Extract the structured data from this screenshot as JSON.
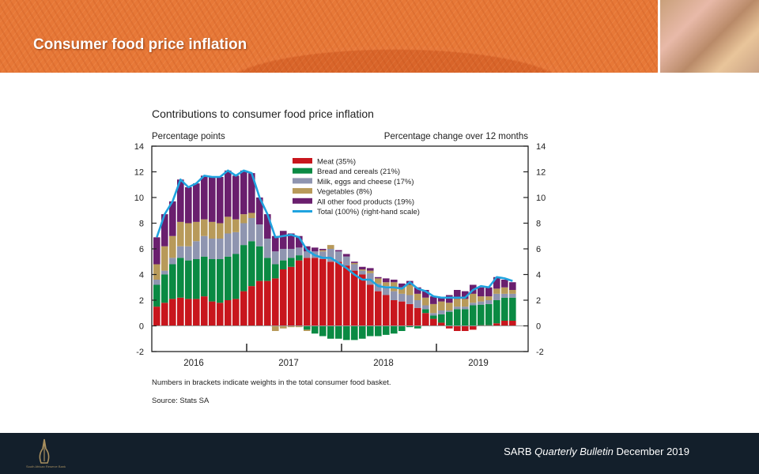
{
  "header": {
    "title": "Consumer food price inflation"
  },
  "footer": {
    "prefix": "SARB",
    "quarterly": "Quarterly",
    "bulletin": "Bulletin",
    "suffix": "December 2019",
    "logo_text": "South African Reserve Bank"
  },
  "colors": {
    "meat": "#c8161d",
    "bread": "#0a8a43",
    "milk": "#8f95b0",
    "veg": "#b89a5a",
    "other": "#6a1f6e",
    "total": "#1fa3df",
    "banner": "#e67838",
    "footer": "#131f2b"
  },
  "chart_data": {
    "type": "bar",
    "stacked": true,
    "title": "Contributions to consumer food price inflation",
    "ylabel_left": "Percentage points",
    "ylabel_right": "Percentage change over 12 months",
    "ylim": [
      -2,
      14
    ],
    "yticks": [
      -2,
      0,
      2,
      4,
      6,
      8,
      10,
      12,
      14
    ],
    "x_start": "2016-01",
    "x_labels": [
      "2016",
      "2017",
      "2018",
      "2019"
    ],
    "legend_position": "top-center",
    "series": [
      {
        "key": "meat",
        "name": "Meat (35%)",
        "values": [
          1.5,
          1.8,
          2.1,
          2.2,
          2.1,
          2.1,
          2.3,
          1.9,
          1.8,
          2.0,
          2.1,
          2.7,
          3.1,
          3.5,
          3.5,
          3.7,
          4.4,
          4.6,
          5.1,
          5.3,
          5.3,
          5.2,
          5.0,
          5.0,
          4.7,
          4.3,
          4.0,
          3.2,
          2.7,
          2.4,
          2.0,
          1.9,
          1.7,
          1.4,
          1.0,
          0.55,
          0.25,
          -0.2,
          -0.4,
          -0.4,
          -0.3,
          0.05,
          0.05,
          0.2,
          0.4,
          0.4
        ]
      },
      {
        "key": "bread",
        "name": "Bread and cereals (21%)",
        "values": [
          1.7,
          2.2,
          2.7,
          3.1,
          3.0,
          3.1,
          3.1,
          3.3,
          3.4,
          3.4,
          3.5,
          3.6,
          3.5,
          2.7,
          1.8,
          1.1,
          0.7,
          0.7,
          0.4,
          -0.3,
          -0.6,
          -0.8,
          -1.0,
          -1.0,
          -1.1,
          -1.1,
          -1.0,
          -0.8,
          -0.8,
          -0.7,
          -0.6,
          -0.4,
          -0.1,
          -0.2,
          0.3,
          0.25,
          0.65,
          1.1,
          1.3,
          1.3,
          1.6,
          1.6,
          1.65,
          1.8,
          1.8,
          1.8
        ]
      },
      {
        "key": "milk",
        "name": "Milk, eggs and cheese (17%)",
        "values": [
          0.4,
          0.3,
          0.5,
          0.9,
          1.1,
          1.4,
          1.6,
          1.6,
          1.6,
          1.8,
          1.7,
          1.7,
          1.8,
          1.7,
          1.5,
          1.0,
          0.9,
          0.7,
          0.6,
          0.5,
          0.5,
          0.6,
          1.0,
          0.8,
          0.7,
          0.5,
          0.3,
          0.9,
          0.6,
          0.7,
          0.7,
          0.6,
          0.7,
          0.6,
          0.3,
          0.2,
          0.3,
          0.1,
          0.2,
          0.2,
          0.2,
          0.25,
          0.3,
          0.5,
          0.3,
          0.3
        ]
      },
      {
        "key": "veg",
        "name": "Vegetables (8%)",
        "values": [
          1.2,
          1.9,
          1.7,
          1.9,
          1.8,
          1.5,
          1.3,
          1.3,
          1.2,
          1.3,
          1.0,
          0.7,
          0.4,
          0,
          0,
          -0.4,
          -0.2,
          -0.1,
          -0.1,
          -0.1,
          0,
          0.1,
          0.3,
          0,
          0,
          0.1,
          0.1,
          0.2,
          0.4,
          0.3,
          0.7,
          0.5,
          0.8,
          0.5,
          0.6,
          0.7,
          0.7,
          0.6,
          0.6,
          0.6,
          0.7,
          0.4,
          0.3,
          0.4,
          0.5,
          0.3
        ]
      },
      {
        "key": "other",
        "name": "All other food products (19%)",
        "values": [
          2.1,
          2.5,
          2.7,
          3.3,
          2.8,
          3.0,
          3.4,
          3.5,
          3.6,
          3.6,
          3.4,
          3.4,
          3.1,
          2.1,
          1.9,
          1.2,
          1.4,
          1.2,
          0.9,
          0.4,
          0.3,
          0.1,
          0,
          0.1,
          0.2,
          0.1,
          0.2,
          0.2,
          0.1,
          0.3,
          0.2,
          0.3,
          0.3,
          0.5,
          0.6,
          0.6,
          0.3,
          0.6,
          0.7,
          0.6,
          0.7,
          0.7,
          0.7,
          0.9,
          0.6,
          0.6
        ]
      }
    ],
    "line": {
      "key": "total",
      "name": "Total (100%) (right-hand scale)",
      "values": [
        6.9,
        8.7,
        9.7,
        11.4,
        10.8,
        11.1,
        11.7,
        11.6,
        11.6,
        12.1,
        11.7,
        12.1,
        11.9,
        10.0,
        8.7,
        6.9,
        7.0,
        7.1,
        6.9,
        5.9,
        5.5,
        5.3,
        5.3,
        4.9,
        4.5,
        4.0,
        3.6,
        3.6,
        3.1,
        3.0,
        3.0,
        2.9,
        3.4,
        2.9,
        2.7,
        2.3,
        2.2,
        2.2,
        2.2,
        2.2,
        2.8,
        3.1,
        3.0,
        3.8,
        3.7,
        3.5
      ]
    },
    "notes": [
      "Numbers in brackets indicate weights in the total consumer food basket.",
      "Source: Stats SA"
    ]
  }
}
